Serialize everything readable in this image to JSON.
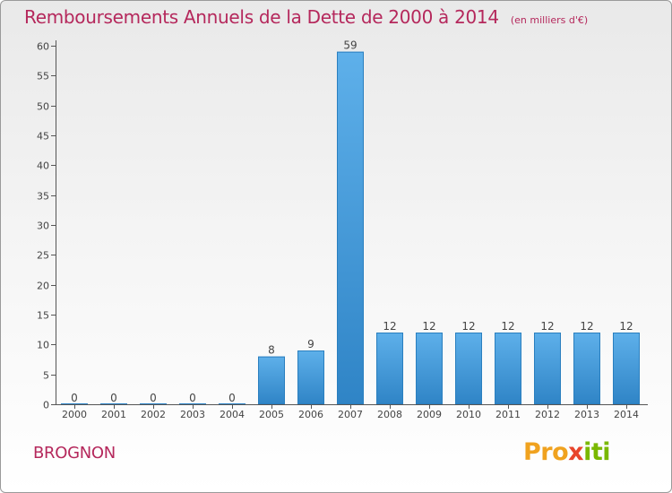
{
  "title": "Remboursements Annuels de la Dette de 2000 à 2014",
  "unit": "(en milliers d'€)",
  "commune": "BROGNON",
  "logo": {
    "part1": "Pro",
    "part2": "x",
    "part3": "iti",
    "colors": [
      "#f0a21f",
      "#2a9ad8",
      "#e8452c",
      "#2a9ad8",
      "#7ab800"
    ]
  },
  "colors": {
    "title": "#b5285c",
    "bar": "#3a96d8",
    "bar_light": "#5eb0ea"
  },
  "chart_data": {
    "type": "bar",
    "categories": [
      "2000",
      "2001",
      "2002",
      "2003",
      "2004",
      "2005",
      "2006",
      "2007",
      "2008",
      "2009",
      "2010",
      "2011",
      "2012",
      "2013",
      "2014"
    ],
    "values": [
      0,
      0,
      0,
      0,
      0,
      8,
      9,
      59,
      12,
      12,
      12,
      12,
      12,
      12,
      12
    ],
    "data_labels": [
      "0",
      "0",
      "0",
      "0",
      "0",
      "8",
      "9",
      "59",
      "12",
      "12",
      "12",
      "12",
      "12",
      "12",
      "12"
    ],
    "title": "Remboursements Annuels de la Dette de 2000 à 2014",
    "ylim": [
      0,
      60
    ],
    "yticks": [
      0,
      5,
      10,
      15,
      20,
      25,
      30,
      35,
      40,
      45,
      50,
      55,
      60
    ],
    "grid": false
  }
}
